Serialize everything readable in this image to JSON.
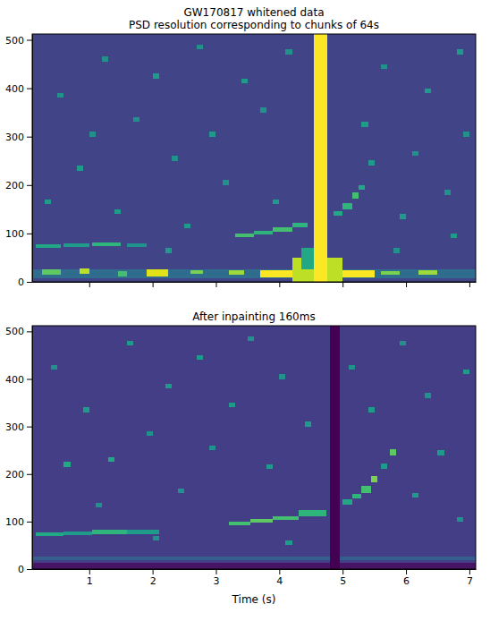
{
  "chart_data": [
    {
      "type": "heatmap",
      "title": [
        "GW170817 whitened data",
        "PSD resolution corresponding to chunks of 64s"
      ],
      "xlim": [
        0.1,
        7.1
      ],
      "xticks": [
        1,
        2,
        3,
        4,
        5,
        6,
        7
      ],
      "ylim": [
        0,
        512
      ],
      "yticks": [
        0,
        100,
        200,
        300,
        400,
        500
      ],
      "tick_labels": "y",
      "color_range": [
        0,
        1
      ],
      "cells": [
        {
          "x0": 0.1,
          "x1": 7.1,
          "y0": 0,
          "y1": 512,
          "value": 0.2
        },
        {
          "x0": 0.1,
          "x1": 7.1,
          "y0": 8,
          "y1": 26,
          "value": 0.35
        },
        {
          "x0": 0.25,
          "x1": 0.55,
          "y0": 14,
          "y1": 26,
          "value": 0.75
        },
        {
          "x0": 0.85,
          "x1": 1.0,
          "y0": 16,
          "y1": 28,
          "value": 0.9
        },
        {
          "x0": 1.45,
          "x1": 1.6,
          "y0": 12,
          "y1": 22,
          "value": 0.7
        },
        {
          "x0": 1.9,
          "x1": 2.25,
          "y0": 12,
          "y1": 26,
          "value": 0.95
        },
        {
          "x0": 2.6,
          "x1": 2.8,
          "y0": 16,
          "y1": 24,
          "value": 0.8
        },
        {
          "x0": 3.2,
          "x1": 3.45,
          "y0": 14,
          "y1": 24,
          "value": 0.85
        },
        {
          "x0": 3.7,
          "x1": 5.5,
          "y0": 10,
          "y1": 24,
          "value": 1.0
        },
        {
          "x0": 4.2,
          "x1": 5.0,
          "y0": 0,
          "y1": 50,
          "value": 0.9
        },
        {
          "x0": 4.35,
          "x1": 4.55,
          "y0": 25,
          "y1": 70,
          "value": 0.6
        },
        {
          "x0": 5.6,
          "x1": 5.9,
          "y0": 14,
          "y1": 22,
          "value": 0.8
        },
        {
          "x0": 6.2,
          "x1": 6.5,
          "y0": 14,
          "y1": 24,
          "value": 0.85
        },
        {
          "x0": 4.55,
          "x1": 4.76,
          "y0": 0,
          "y1": 512,
          "value": 1.0
        },
        {
          "x0": 0.15,
          "x1": 0.55,
          "y0": 70,
          "y1": 78,
          "value": 0.6
        },
        {
          "x0": 0.6,
          "x1": 1.0,
          "y0": 72,
          "y1": 80,
          "value": 0.55
        },
        {
          "x0": 1.05,
          "x1": 1.5,
          "y0": 74,
          "y1": 82,
          "value": 0.65
        },
        {
          "x0": 1.6,
          "x1": 1.9,
          "y0": 72,
          "y1": 80,
          "value": 0.5
        },
        {
          "x0": 3.3,
          "x1": 3.6,
          "y0": 93,
          "y1": 100,
          "value": 0.7
        },
        {
          "x0": 3.6,
          "x1": 3.9,
          "y0": 98,
          "y1": 106,
          "value": 0.65
        },
        {
          "x0": 3.9,
          "x1": 4.2,
          "y0": 104,
          "y1": 112,
          "value": 0.7
        },
        {
          "x0": 4.2,
          "x1": 4.45,
          "y0": 112,
          "y1": 122,
          "value": 0.65
        },
        {
          "x0": 4.85,
          "x1": 5.0,
          "y0": 136,
          "y1": 146,
          "value": 0.6
        },
        {
          "x0": 5.0,
          "x1": 5.15,
          "y0": 150,
          "y1": 162,
          "value": 0.65
        },
        {
          "x0": 5.15,
          "x1": 5.25,
          "y0": 172,
          "y1": 184,
          "value": 0.7
        },
        {
          "x0": 5.25,
          "x1": 5.35,
          "y0": 190,
          "y1": 200,
          "value": 0.6
        },
        {
          "x0": 5.4,
          "x1": 5.5,
          "y0": 240,
          "y1": 252,
          "value": 0.55
        },
        {
          "x0": 0.5,
          "x1": 0.6,
          "y0": 380,
          "y1": 390,
          "value": 0.5
        },
        {
          "x0": 0.8,
          "x1": 0.9,
          "y0": 230,
          "y1": 240,
          "value": 0.55
        },
        {
          "x0": 1.2,
          "x1": 1.3,
          "y0": 455,
          "y1": 465,
          "value": 0.5
        },
        {
          "x0": 1.4,
          "x1": 1.5,
          "y0": 140,
          "y1": 150,
          "value": 0.55
        },
        {
          "x0": 1.7,
          "x1": 1.8,
          "y0": 330,
          "y1": 340,
          "value": 0.5
        },
        {
          "x0": 2.0,
          "x1": 2.1,
          "y0": 420,
          "y1": 430,
          "value": 0.55
        },
        {
          "x0": 2.3,
          "x1": 2.4,
          "y0": 250,
          "y1": 260,
          "value": 0.5
        },
        {
          "x0": 2.5,
          "x1": 2.6,
          "y0": 110,
          "y1": 120,
          "value": 0.55
        },
        {
          "x0": 2.7,
          "x1": 2.8,
          "y0": 480,
          "y1": 490,
          "value": 0.5
        },
        {
          "x0": 2.9,
          "x1": 3.0,
          "y0": 300,
          "y1": 310,
          "value": 0.55
        },
        {
          "x0": 3.1,
          "x1": 3.2,
          "y0": 200,
          "y1": 210,
          "value": 0.5
        },
        {
          "x0": 3.4,
          "x1": 3.5,
          "y0": 410,
          "y1": 420,
          "value": 0.55
        },
        {
          "x0": 3.7,
          "x1": 3.8,
          "y0": 350,
          "y1": 360,
          "value": 0.5
        },
        {
          "x0": 3.9,
          "x1": 4.0,
          "y0": 160,
          "y1": 170,
          "value": 0.55
        },
        {
          "x0": 4.1,
          "x1": 4.2,
          "y0": 470,
          "y1": 480,
          "value": 0.5
        },
        {
          "x0": 5.3,
          "x1": 5.4,
          "y0": 320,
          "y1": 330,
          "value": 0.55
        },
        {
          "x0": 5.6,
          "x1": 5.7,
          "y0": 440,
          "y1": 450,
          "value": 0.5
        },
        {
          "x0": 5.9,
          "x1": 6.0,
          "y0": 130,
          "y1": 140,
          "value": 0.55
        },
        {
          "x0": 6.1,
          "x1": 6.2,
          "y0": 260,
          "y1": 270,
          "value": 0.5
        },
        {
          "x0": 6.3,
          "x1": 6.4,
          "y0": 390,
          "y1": 400,
          "value": 0.55
        },
        {
          "x0": 6.6,
          "x1": 6.7,
          "y0": 180,
          "y1": 190,
          "value": 0.5
        },
        {
          "x0": 6.8,
          "x1": 6.9,
          "y0": 470,
          "y1": 480,
          "value": 0.55
        },
        {
          "x0": 6.9,
          "x1": 7.0,
          "y0": 300,
          "y1": 310,
          "value": 0.5
        },
        {
          "x0": 0.3,
          "x1": 0.4,
          "y0": 160,
          "y1": 170,
          "value": 0.55
        },
        {
          "x0": 1.0,
          "x1": 1.1,
          "y0": 300,
          "y1": 310,
          "value": 0.5
        },
        {
          "x0": 2.2,
          "x1": 2.3,
          "y0": 60,
          "y1": 70,
          "value": 0.55
        },
        {
          "x0": 5.8,
          "x1": 5.9,
          "y0": 60,
          "y1": 70,
          "value": 0.5
        },
        {
          "x0": 6.7,
          "x1": 6.8,
          "y0": 90,
          "y1": 100,
          "value": 0.55
        }
      ]
    },
    {
      "type": "heatmap",
      "title": "After inpainting 160ms",
      "xlabel": "Time (s)",
      "xlim": [
        0.1,
        7.1
      ],
      "xticks": [
        1,
        2,
        3,
        4,
        5,
        6,
        7
      ],
      "ylim": [
        0,
        512
      ],
      "yticks": [
        0,
        100,
        200,
        300,
        400,
        500
      ],
      "color_range": [
        0,
        1
      ],
      "cells": [
        {
          "x0": 0.1,
          "x1": 7.1,
          "y0": 0,
          "y1": 512,
          "value": 0.18
        },
        {
          "x0": 0.1,
          "x1": 7.1,
          "y0": 0,
          "y1": 14,
          "value": 0.05
        },
        {
          "x0": 0.1,
          "x1": 7.1,
          "y0": 18,
          "y1": 26,
          "value": 0.3
        },
        {
          "x0": 4.8,
          "x1": 4.96,
          "y0": 0,
          "y1": 512,
          "value": 0.0
        },
        {
          "x0": 0.15,
          "x1": 0.6,
          "y0": 70,
          "y1": 78,
          "value": 0.6
        },
        {
          "x0": 0.6,
          "x1": 1.05,
          "y0": 72,
          "y1": 80,
          "value": 0.55
        },
        {
          "x0": 1.05,
          "x1": 1.6,
          "y0": 74,
          "y1": 82,
          "value": 0.65
        },
        {
          "x0": 1.6,
          "x1": 2.1,
          "y0": 74,
          "y1": 82,
          "value": 0.55
        },
        {
          "x0": 3.2,
          "x1": 3.55,
          "y0": 92,
          "y1": 100,
          "value": 0.7
        },
        {
          "x0": 3.55,
          "x1": 3.9,
          "y0": 98,
          "y1": 106,
          "value": 0.75
        },
        {
          "x0": 3.9,
          "x1": 4.3,
          "y0": 104,
          "y1": 112,
          "value": 0.7
        },
        {
          "x0": 4.3,
          "x1": 4.75,
          "y0": 112,
          "y1": 124,
          "value": 0.65
        },
        {
          "x0": 5.0,
          "x1": 5.15,
          "y0": 136,
          "y1": 146,
          "value": 0.6
        },
        {
          "x0": 5.15,
          "x1": 5.3,
          "y0": 148,
          "y1": 158,
          "value": 0.65
        },
        {
          "x0": 5.3,
          "x1": 5.45,
          "y0": 160,
          "y1": 176,
          "value": 0.7
        },
        {
          "x0": 5.45,
          "x1": 5.55,
          "y0": 182,
          "y1": 196,
          "value": 0.8
        },
        {
          "x0": 5.6,
          "x1": 5.7,
          "y0": 210,
          "y1": 222,
          "value": 0.55
        },
        {
          "x0": 5.75,
          "x1": 5.85,
          "y0": 240,
          "y1": 252,
          "value": 0.75
        },
        {
          "x0": 0.6,
          "x1": 0.7,
          "y0": 215,
          "y1": 225,
          "value": 0.6
        },
        {
          "x0": 1.3,
          "x1": 1.4,
          "y0": 225,
          "y1": 235,
          "value": 0.6
        },
        {
          "x0": 0.4,
          "x1": 0.5,
          "y0": 420,
          "y1": 430,
          "value": 0.5
        },
        {
          "x0": 0.9,
          "x1": 1.0,
          "y0": 330,
          "y1": 340,
          "value": 0.55
        },
        {
          "x0": 1.1,
          "x1": 1.2,
          "y0": 130,
          "y1": 140,
          "value": 0.5
        },
        {
          "x0": 1.6,
          "x1": 1.7,
          "y0": 470,
          "y1": 480,
          "value": 0.55
        },
        {
          "x0": 1.9,
          "x1": 2.0,
          "y0": 280,
          "y1": 290,
          "value": 0.5
        },
        {
          "x0": 2.2,
          "x1": 2.3,
          "y0": 380,
          "y1": 390,
          "value": 0.55
        },
        {
          "x0": 2.4,
          "x1": 2.5,
          "y0": 160,
          "y1": 170,
          "value": 0.5
        },
        {
          "x0": 2.7,
          "x1": 2.8,
          "y0": 440,
          "y1": 450,
          "value": 0.55
        },
        {
          "x0": 2.9,
          "x1": 3.0,
          "y0": 250,
          "y1": 260,
          "value": 0.5
        },
        {
          "x0": 3.2,
          "x1": 3.3,
          "y0": 340,
          "y1": 350,
          "value": 0.55
        },
        {
          "x0": 3.5,
          "x1": 3.6,
          "y0": 480,
          "y1": 490,
          "value": 0.5
        },
        {
          "x0": 3.8,
          "x1": 3.9,
          "y0": 210,
          "y1": 220,
          "value": 0.55
        },
        {
          "x0": 4.0,
          "x1": 4.1,
          "y0": 400,
          "y1": 410,
          "value": 0.5
        },
        {
          "x0": 4.4,
          "x1": 4.5,
          "y0": 300,
          "y1": 310,
          "value": 0.55
        },
        {
          "x0": 5.1,
          "x1": 5.2,
          "y0": 420,
          "y1": 430,
          "value": 0.5
        },
        {
          "x0": 5.4,
          "x1": 5.5,
          "y0": 330,
          "y1": 340,
          "value": 0.55
        },
        {
          "x0": 5.9,
          "x1": 6.0,
          "y0": 470,
          "y1": 480,
          "value": 0.5
        },
        {
          "x0": 6.1,
          "x1": 6.2,
          "y0": 150,
          "y1": 160,
          "value": 0.55
        },
        {
          "x0": 6.3,
          "x1": 6.4,
          "y0": 360,
          "y1": 370,
          "value": 0.5
        },
        {
          "x0": 6.5,
          "x1": 6.6,
          "y0": 240,
          "y1": 250,
          "value": 0.55
        },
        {
          "x0": 6.8,
          "x1": 6.9,
          "y0": 100,
          "y1": 110,
          "value": 0.5
        },
        {
          "x0": 6.9,
          "x1": 7.0,
          "y0": 410,
          "y1": 420,
          "value": 0.55
        },
        {
          "x0": 2.0,
          "x1": 2.1,
          "y0": 60,
          "y1": 70,
          "value": 0.5
        },
        {
          "x0": 4.1,
          "x1": 4.2,
          "y0": 50,
          "y1": 60,
          "value": 0.55
        }
      ]
    }
  ]
}
